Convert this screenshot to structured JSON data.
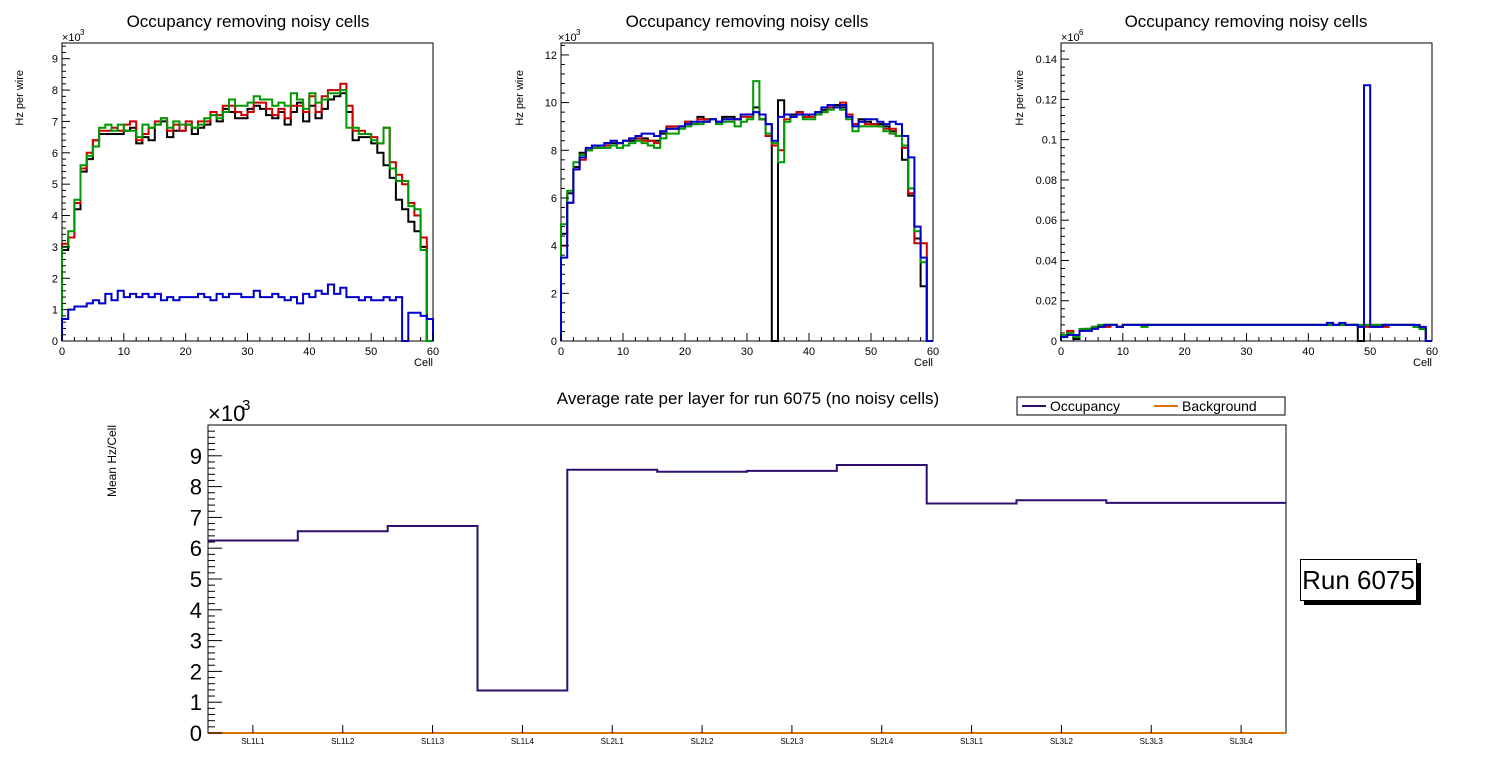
{
  "colors": {
    "black": "#000000",
    "red": "#cc0000",
    "green": "#009900",
    "blue": "#0000cc",
    "occupancy": "#2e0f6e",
    "background": "#e07000"
  },
  "run_label": "Run 6075",
  "chart_data": [
    {
      "type": "line",
      "title": "Occupancy removing noisy cells",
      "xlabel": "Cell",
      "ylabel": "Hz per wire",
      "exponent": "×10",
      "exponent_power": "3",
      "xlim": [
        0,
        60
      ],
      "ylim": [
        0,
        9500
      ],
      "x_ticks": [
        0,
        10,
        20,
        30,
        40,
        50,
        60
      ],
      "y_ticks": [
        0,
        1000,
        2000,
        3000,
        4000,
        5000,
        6000,
        7000,
        8000,
        9000
      ],
      "y_tick_labels": [
        "0",
        "1",
        "2",
        "3",
        "4",
        "5",
        "6",
        "7",
        "8",
        "9"
      ],
      "series": [
        {
          "name": "black",
          "color": "#000000",
          "values": [
            2900,
            3300,
            4200,
            5400,
            5800,
            6400,
            6600,
            6600,
            6600,
            6600,
            6700,
            6800,
            6300,
            6500,
            6400,
            6900,
            7000,
            6500,
            6700,
            6700,
            6900,
            6600,
            6800,
            6900,
            7200,
            7000,
            7400,
            7300,
            7100,
            7100,
            7400,
            7500,
            7400,
            7200,
            7100,
            7300,
            6900,
            7300,
            7600,
            7000,
            7500,
            7100,
            7400,
            7700,
            7800,
            7900,
            7300,
            6400,
            6500,
            6500,
            6300,
            6000,
            5600,
            5200,
            4500,
            4200,
            3800,
            3500,
            3000,
            0
          ]
        },
        {
          "name": "red",
          "color": "#cc0000",
          "values": [
            3100,
            3300,
            4400,
            5500,
            6000,
            6400,
            6700,
            6700,
            6800,
            6700,
            6900,
            7000,
            6400,
            6600,
            6800,
            7000,
            7100,
            6700,
            6900,
            6700,
            7000,
            6800,
            7000,
            7000,
            7300,
            7200,
            7500,
            7500,
            7300,
            7200,
            7300,
            7600,
            7600,
            7400,
            7200,
            7400,
            7100,
            7500,
            7500,
            7300,
            7800,
            7300,
            7800,
            8000,
            8000,
            8200,
            7500,
            6700,
            6700,
            6600,
            6500,
            6300,
            6800,
            5700,
            5300,
            5000,
            4400,
            4000,
            3300,
            0
          ]
        },
        {
          "name": "green",
          "color": "#009900",
          "values": [
            3000,
            3500,
            4500,
            5600,
            5900,
            6200,
            6800,
            6900,
            6700,
            6900,
            6700,
            6700,
            6500,
            6900,
            6800,
            6900,
            7100,
            6800,
            7000,
            6900,
            6900,
            6800,
            6900,
            7100,
            7200,
            7100,
            7300,
            7700,
            7500,
            7500,
            7600,
            7800,
            7700,
            7700,
            7500,
            7600,
            7500,
            7900,
            7700,
            7400,
            7900,
            7600,
            7700,
            7900,
            7900,
            8000,
            6800,
            6800,
            6600,
            6600,
            6400,
            6300,
            6800,
            5500,
            5100,
            5100,
            4300,
            4200,
            2900,
            0
          ]
        },
        {
          "name": "blue",
          "color": "#0000cc",
          "values": [
            700,
            1000,
            1100,
            1100,
            1200,
            1300,
            1200,
            1500,
            1300,
            1600,
            1400,
            1500,
            1400,
            1500,
            1400,
            1500,
            1300,
            1400,
            1300,
            1400,
            1400,
            1400,
            1500,
            1400,
            1300,
            1500,
            1400,
            1500,
            1500,
            1400,
            1400,
            1600,
            1400,
            1400,
            1500,
            1400,
            1300,
            1400,
            1200,
            1500,
            1400,
            1600,
            1500,
            1800,
            1500,
            1700,
            1400,
            1400,
            1300,
            1400,
            1300,
            1300,
            1400,
            1300,
            1400,
            0,
            900,
            900,
            800,
            700
          ]
        }
      ]
    },
    {
      "type": "line",
      "title": "Occupancy removing noisy cells",
      "xlabel": "Cell",
      "ylabel": "Hz per wire",
      "exponent": "×10",
      "exponent_power": "3",
      "xlim": [
        0,
        60
      ],
      "ylim": [
        0,
        12500
      ],
      "x_ticks": [
        0,
        10,
        20,
        30,
        40,
        50,
        60
      ],
      "y_ticks": [
        0,
        2000,
        4000,
        6000,
        8000,
        10000,
        12000
      ],
      "y_tick_labels": [
        "0",
        "2",
        "4",
        "6",
        "8",
        "10",
        "12"
      ],
      "series": [
        {
          "name": "black",
          "color": "#000000",
          "values": [
            4500,
            6200,
            7300,
            7900,
            8000,
            8100,
            8200,
            8300,
            8300,
            8300,
            8400,
            8400,
            8500,
            8500,
            8400,
            8400,
            8700,
            8900,
            8900,
            9000,
            9200,
            9100,
            9400,
            9300,
            9300,
            9200,
            9400,
            9400,
            9300,
            9500,
            9500,
            9800,
            9300,
            9100,
            0,
            10100,
            9500,
            9500,
            9600,
            9400,
            9500,
            9600,
            9700,
            9800,
            9900,
            9800,
            9500,
            9100,
            9300,
            9200,
            9100,
            9100,
            9000,
            8800,
            8600,
            7600,
            6100,
            4300,
            2300,
            0
          ]
        },
        {
          "name": "red",
          "color": "#cc0000",
          "values": [
            4000,
            5800,
            7200,
            7600,
            8000,
            8100,
            8100,
            8200,
            8200,
            8300,
            8400,
            8500,
            8500,
            8400,
            8400,
            8300,
            8800,
            9000,
            9000,
            9000,
            9200,
            9100,
            9300,
            9300,
            9300,
            9200,
            9300,
            9300,
            9300,
            9400,
            9400,
            9600,
            9300,
            8600,
            8200,
            8000,
            9300,
            9400,
            9600,
            9400,
            9400,
            9500,
            9600,
            9800,
            9800,
            10000,
            9500,
            9100,
            9200,
            9100,
            9100,
            9000,
            8900,
            8900,
            8600,
            8100,
            6200,
            4100,
            4100,
            0
          ]
        },
        {
          "name": "green",
          "color": "#009900",
          "values": [
            4900,
            6300,
            7500,
            7800,
            8000,
            8100,
            8100,
            8100,
            8200,
            8100,
            8200,
            8300,
            8400,
            8300,
            8200,
            8100,
            8500,
            8700,
            8700,
            8900,
            9000,
            9100,
            9100,
            9200,
            9300,
            9100,
            9200,
            9200,
            9000,
            9200,
            9300,
            10900,
            9300,
            8700,
            8300,
            7500,
            9200,
            9400,
            9500,
            9300,
            9300,
            9500,
            9600,
            9700,
            9800,
            9700,
            9300,
            8800,
            9000,
            9000,
            9000,
            9000,
            8800,
            8700,
            8600,
            8200,
            6400,
            4600,
            3300,
            0
          ]
        },
        {
          "name": "blue",
          "color": "#0000cc",
          "values": [
            3500,
            5800,
            7200,
            7700,
            8100,
            8200,
            8200,
            8300,
            8400,
            8300,
            8400,
            8500,
            8600,
            8700,
            8700,
            8600,
            8800,
            8900,
            8900,
            9000,
            9100,
            9200,
            9200,
            9200,
            9300,
            9200,
            9300,
            9300,
            9300,
            9500,
            9500,
            9600,
            9500,
            9100,
            8400,
            9400,
            9500,
            9400,
            9500,
            9500,
            9500,
            9600,
            9800,
            9900,
            9800,
            9900,
            9400,
            9000,
            9200,
            9300,
            9300,
            9200,
            9100,
            9200,
            9100,
            8600,
            7700,
            4800,
            3500,
            0
          ]
        }
      ]
    },
    {
      "type": "line",
      "title": "Occupancy removing noisy cells",
      "xlabel": "Cell",
      "ylabel": "Hz per wire",
      "exponent": "×10",
      "exponent_power": "6",
      "xlim": [
        0,
        60
      ],
      "ylim": [
        0,
        0.148
      ],
      "x_ticks": [
        0,
        10,
        20,
        30,
        40,
        50,
        60
      ],
      "y_ticks": [
        0,
        0.02,
        0.04,
        0.06,
        0.08,
        0.1,
        0.12,
        0.14
      ],
      "y_tick_labels": [
        "0",
        "0.02",
        "0.04",
        "0.06",
        "0.08",
        "0.1",
        "0.12",
        "0.14"
      ],
      "series": [
        {
          "name": "black",
          "color": "#000000",
          "values": [
            0.003,
            0.004,
            0.001,
            0.005,
            0.006,
            0.007,
            0.007,
            0.008,
            0.008,
            0.007,
            0.008,
            0.008,
            0.008,
            0.008,
            0.008,
            0.008,
            0.008,
            0.008,
            0.008,
            0.008,
            0.008,
            0.008,
            0.008,
            0.008,
            0.008,
            0.008,
            0.008,
            0.008,
            0.008,
            0.008,
            0.008,
            0.008,
            0.008,
            0.008,
            0.008,
            0.008,
            0.008,
            0.008,
            0.008,
            0.008,
            0.008,
            0.008,
            0.008,
            0.008,
            0.008,
            0.008,
            0.008,
            0.008,
            0.0,
            0.008,
            0.008,
            0.008,
            0.008,
            0.008,
            0.008,
            0.008,
            0.008,
            0.007,
            0.006,
            0.0
          ]
        },
        {
          "name": "red",
          "color": "#cc0000",
          "values": [
            0.002,
            0.005,
            0.002,
            0.005,
            0.006,
            0.007,
            0.007,
            0.007,
            0.008,
            0.007,
            0.008,
            0.008,
            0.008,
            0.008,
            0.008,
            0.008,
            0.008,
            0.008,
            0.008,
            0.008,
            0.008,
            0.008,
            0.008,
            0.008,
            0.008,
            0.008,
            0.008,
            0.008,
            0.008,
            0.008,
            0.008,
            0.008,
            0.008,
            0.008,
            0.008,
            0.008,
            0.008,
            0.008,
            0.008,
            0.008,
            0.008,
            0.008,
            0.008,
            0.008,
            0.008,
            0.008,
            0.008,
            0.008,
            0.007,
            0.007,
            0.007,
            0.007,
            0.007,
            0.008,
            0.008,
            0.008,
            0.008,
            0.007,
            0.006,
            0.0
          ]
        },
        {
          "name": "green",
          "color": "#009900",
          "values": [
            0.003,
            0.004,
            0.002,
            0.006,
            0.006,
            0.007,
            0.008,
            0.008,
            0.008,
            0.007,
            0.008,
            0.008,
            0.008,
            0.007,
            0.008,
            0.008,
            0.008,
            0.008,
            0.008,
            0.008,
            0.008,
            0.008,
            0.008,
            0.008,
            0.008,
            0.008,
            0.008,
            0.008,
            0.008,
            0.008,
            0.008,
            0.008,
            0.008,
            0.008,
            0.008,
            0.008,
            0.008,
            0.008,
            0.008,
            0.008,
            0.008,
            0.008,
            0.008,
            0.008,
            0.008,
            0.008,
            0.008,
            0.008,
            0.008,
            0.008,
            0.008,
            0.008,
            0.008,
            0.008,
            0.008,
            0.008,
            0.008,
            0.007,
            0.006,
            0.0
          ]
        },
        {
          "name": "blue",
          "color": "#0000cc",
          "values": [
            0.002,
            0.003,
            0.003,
            0.005,
            0.005,
            0.006,
            0.007,
            0.008,
            0.008,
            0.007,
            0.008,
            0.008,
            0.008,
            0.008,
            0.008,
            0.008,
            0.008,
            0.008,
            0.008,
            0.008,
            0.008,
            0.008,
            0.008,
            0.008,
            0.008,
            0.008,
            0.008,
            0.008,
            0.008,
            0.008,
            0.008,
            0.008,
            0.008,
            0.008,
            0.008,
            0.008,
            0.008,
            0.008,
            0.008,
            0.008,
            0.008,
            0.008,
            0.008,
            0.009,
            0.008,
            0.009,
            0.008,
            0.008,
            0.007,
            0.127,
            0.007,
            0.007,
            0.008,
            0.008,
            0.008,
            0.008,
            0.008,
            0.008,
            0.007,
            0.0
          ]
        }
      ]
    },
    {
      "type": "line",
      "title": "Average rate per layer for run 6075 (no noisy cells)",
      "xlabel": "",
      "ylabel": "Mean Hz/Cell",
      "exponent": "×10",
      "exponent_power": "3",
      "categories": [
        "SL1L1",
        "SL1L2",
        "SL1L3",
        "SL1L4",
        "SL2L1",
        "SL2L2",
        "SL2L3",
        "SL2L4",
        "SL3L1",
        "SL3L2",
        "SL3L3",
        "SL3L4"
      ],
      "ylim": [
        0,
        10000
      ],
      "y_ticks": [
        0,
        1000,
        2000,
        3000,
        4000,
        5000,
        6000,
        7000,
        8000,
        9000
      ],
      "y_tick_labels": [
        "0",
        "1",
        "2",
        "3",
        "4",
        "5",
        "6",
        "7",
        "8",
        "9"
      ],
      "legend": [
        "Occupancy",
        "Background"
      ],
      "legend_placement": "top-right",
      "series": [
        {
          "name": "Occupancy",
          "color": "#2e0f6e",
          "values": [
            6250,
            6550,
            6720,
            1380,
            8550,
            8480,
            8510,
            8700,
            7450,
            7560,
            7470,
            7470
          ]
        },
        {
          "name": "Background",
          "color": "#e07000",
          "values": [
            0,
            0,
            0,
            0,
            0,
            0,
            0,
            0,
            0,
            0,
            0,
            0
          ]
        }
      ]
    }
  ]
}
